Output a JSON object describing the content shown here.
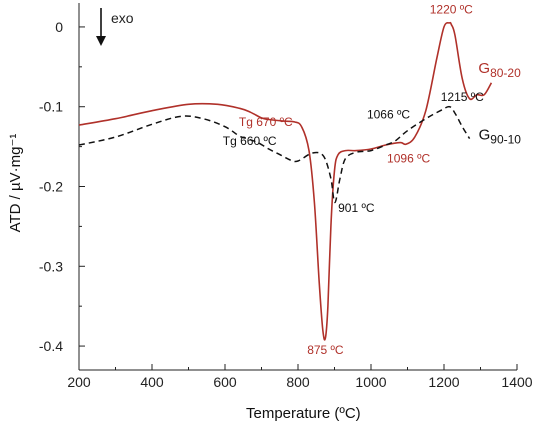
{
  "chart_data": {
    "type": "line",
    "xlabel": "Temperature (ºC)",
    "ylabel": "ATD / µV·mg⁻¹",
    "xlim": [
      200,
      1400
    ],
    "ylim": [
      -0.43,
      0.03
    ],
    "x_ticks": [
      "200",
      "400",
      "600",
      "800",
      "1000",
      "1200",
      "1400"
    ],
    "y_ticks": [
      "0",
      "-0.1",
      "-0.2",
      "-0.3",
      "-0.4"
    ],
    "exo_label": "exo",
    "grid": false,
    "series": [
      {
        "name": "G80-20",
        "label_main": "G",
        "label_sub": "80-20",
        "color": "#b0312a",
        "style": "solid",
        "x": [
          200,
          300,
          400,
          500,
          580,
          640,
          670,
          700,
          720,
          760,
          790,
          810,
          830,
          845,
          858,
          868,
          875,
          882,
          890,
          900,
          910,
          930,
          960,
          1000,
          1040,
          1080,
          1096,
          1120,
          1150,
          1180,
          1200,
          1215,
          1220,
          1230,
          1250,
          1270,
          1290,
          1310,
          1330
        ],
        "y": [
          -0.123,
          -0.115,
          -0.105,
          -0.097,
          -0.097,
          -0.102,
          -0.107,
          -0.114,
          -0.116,
          -0.118,
          -0.119,
          -0.125,
          -0.155,
          -0.22,
          -0.32,
          -0.38,
          -0.39,
          -0.35,
          -0.25,
          -0.18,
          -0.16,
          -0.155,
          -0.155,
          -0.153,
          -0.148,
          -0.145,
          -0.147,
          -0.138,
          -0.105,
          -0.04,
          0.0,
          0.005,
          0.003,
          -0.01,
          -0.065,
          -0.09,
          -0.085,
          -0.085,
          -0.07
        ]
      },
      {
        "name": "G90-10",
        "label_main": "G",
        "label_sub": "90-10",
        "color": "#111111",
        "style": "dashed",
        "x": [
          200,
          300,
          400,
          480,
          540,
          600,
          640,
          660,
          690,
          720,
          750,
          780,
          800,
          840,
          870,
          890,
          901,
          915,
          930,
          960,
          1000,
          1040,
          1066,
          1100,
          1150,
          1190,
          1215,
          1230,
          1250,
          1270
        ],
        "y": [
          -0.148,
          -0.138,
          -0.122,
          -0.112,
          -0.115,
          -0.125,
          -0.137,
          -0.14,
          -0.145,
          -0.153,
          -0.16,
          -0.167,
          -0.168,
          -0.158,
          -0.162,
          -0.19,
          -0.22,
          -0.19,
          -0.165,
          -0.157,
          -0.155,
          -0.148,
          -0.143,
          -0.13,
          -0.115,
          -0.105,
          -0.1,
          -0.108,
          -0.125,
          -0.14
        ]
      }
    ],
    "annotations": [
      {
        "text": "1220 ºC",
        "x": 1220,
        "y": 0.012,
        "color": "red",
        "anchor": "middle",
        "dy": -4
      },
      {
        "text": "Tg 670 ºC",
        "x": 638,
        "y": -0.124,
        "color": "red",
        "anchor": "start",
        "dy": 0
      },
      {
        "text": "Tg 660 ºC",
        "x": 594,
        "y": -0.148,
        "color": "black",
        "anchor": "start",
        "dy": 0
      },
      {
        "text": "901 ºC",
        "x": 910,
        "y": -0.232,
        "color": "black",
        "anchor": "start",
        "dy": 0
      },
      {
        "text": "875 ºC",
        "x": 875,
        "y": -0.41,
        "color": "red",
        "anchor": "middle",
        "dy": 0
      },
      {
        "text": "1066 ºC",
        "x": 1048,
        "y": -0.115,
        "color": "black",
        "anchor": "middle",
        "dy": 0
      },
      {
        "text": "1096 ºC",
        "x": 1103,
        "y": -0.17,
        "color": "red",
        "anchor": "middle",
        "dy": 0
      },
      {
        "text": "1215 ºC",
        "x": 1250,
        "y": -0.093,
        "color": "black",
        "anchor": "middle",
        "dy": 0
      }
    ]
  }
}
